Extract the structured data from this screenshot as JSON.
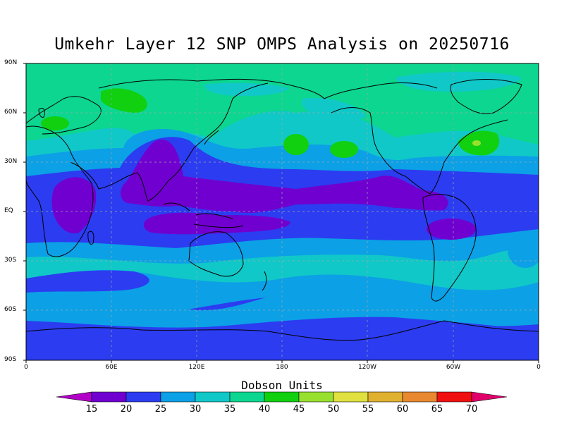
{
  "title": "Umkehr Layer 12 SNP OMPS Analysis on 20250716",
  "lat_labels": [
    "90N",
    "60N",
    "30N",
    "EQ",
    "30S",
    "60S",
    "90S"
  ],
  "lon_labels": [
    "0",
    "60E",
    "120E",
    "180",
    "120W",
    "60W",
    "0"
  ],
  "colorbar": {
    "title": "Dobson Units",
    "ticks": [
      "15",
      "20",
      "25",
      "30",
      "35",
      "40",
      "45",
      "50",
      "55",
      "60",
      "65",
      "70"
    ],
    "colors": [
      "#b200c8",
      "#7000d0",
      "#2c3cf0",
      "#0ca0e6",
      "#10c8c8",
      "#0cd690",
      "#10d010",
      "#98e030",
      "#e0e040",
      "#e0b030",
      "#e88830",
      "#f01010",
      "#e0006a"
    ]
  },
  "level_colors": {
    "15-20": "#7000d0",
    "20-25": "#2c3cf0",
    "25-30": "#0ca0e6",
    "30-35": "#10c8c8",
    "35-40": "#0cd690",
    "40-45": "#10d010",
    "45-50": "#98e030"
  }
}
